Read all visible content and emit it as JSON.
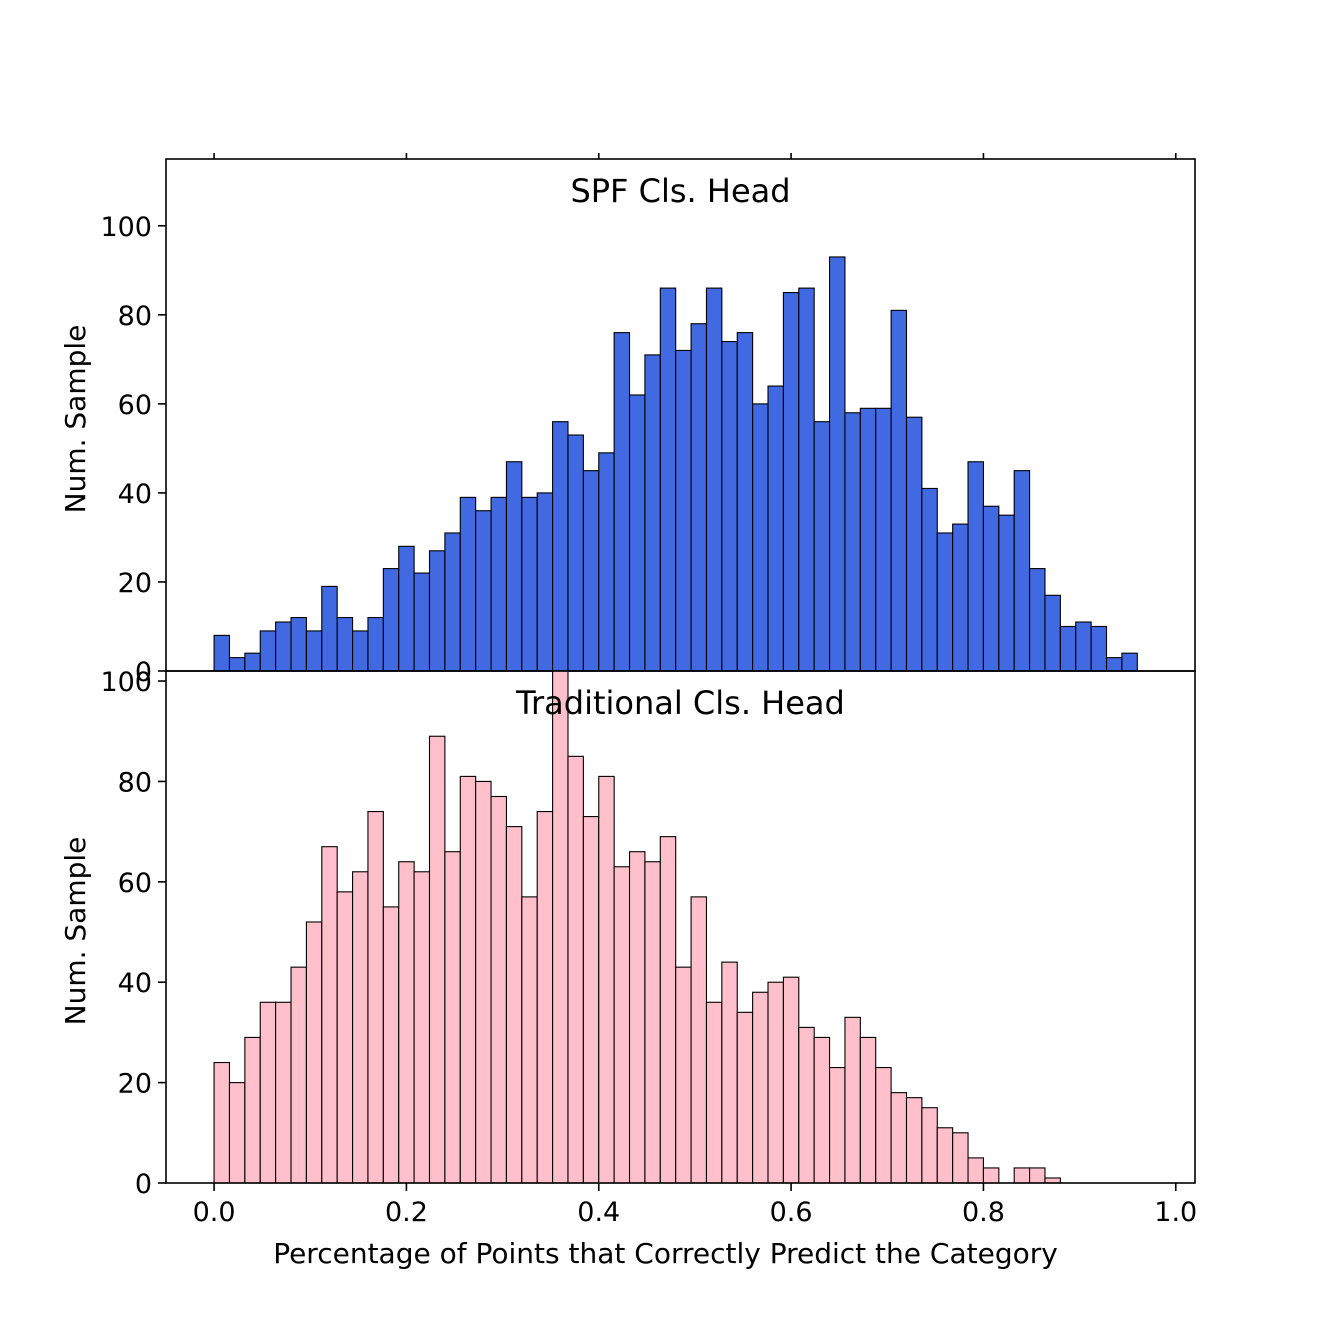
{
  "chart_data": [
    {
      "type": "bar",
      "title": "SPF Cls. Head",
      "xlabel": "",
      "ylabel": "Num. Sample",
      "xlim": [
        -0.05,
        1.02
      ],
      "ylim": [
        0,
        115
      ],
      "x_ticks": [
        0.0,
        0.2,
        0.4,
        0.6,
        0.8,
        1.0
      ],
      "x_tick_labels_visible": false,
      "y_ticks": [
        0,
        20,
        40,
        60,
        80,
        100
      ],
      "y_tick_labels": [
        "0",
        "20",
        "40",
        "60",
        "80",
        "100"
      ],
      "bin_start": 0.0,
      "bin_width": 0.016,
      "color": "#4169e1",
      "edgecolor": "#000000",
      "grid": false,
      "values": [
        8,
        3,
        4,
        9,
        11,
        12,
        9,
        19,
        12,
        9,
        12,
        23,
        28,
        22,
        27,
        31,
        39,
        36,
        39,
        47,
        39,
        40,
        56,
        53,
        45,
        49,
        76,
        62,
        71,
        86,
        72,
        78,
        86,
        74,
        76,
        60,
        64,
        85,
        86,
        56,
        93,
        58,
        59,
        59,
        81,
        57,
        41,
        31,
        33,
        47,
        37,
        35,
        45,
        23,
        17,
        10,
        11,
        10,
        3,
        4
      ]
    },
    {
      "type": "bar",
      "title": "Traditional Cls. Head",
      "xlabel": "Percentage of Points that Correctly Predict the Category",
      "ylabel": "Num. Sample",
      "xlim": [
        -0.05,
        1.02
      ],
      "ylim": [
        0,
        102
      ],
      "x_ticks": [
        0.0,
        0.2,
        0.4,
        0.6,
        0.8,
        1.0
      ],
      "x_tick_labels": [
        "0.0",
        "0.2",
        "0.4",
        "0.6",
        "0.8",
        "1.0"
      ],
      "y_ticks": [
        0,
        20,
        40,
        60,
        80,
        100
      ],
      "y_tick_labels": [
        "0",
        "20",
        "40",
        "60",
        "80",
        "100"
      ],
      "bin_start": 0.0,
      "bin_width": 0.016,
      "color": "#ffc0cb",
      "edgecolor": "#000000",
      "grid": false,
      "values": [
        24,
        20,
        29,
        36,
        36,
        43,
        52,
        67,
        58,
        62,
        74,
        55,
        64,
        62,
        89,
        66,
        81,
        80,
        77,
        71,
        57,
        74,
        102,
        85,
        73,
        81,
        63,
        66,
        64,
        69,
        43,
        57,
        36,
        44,
        34,
        38,
        40,
        41,
        31,
        29,
        23,
        33,
        29,
        23,
        18,
        17,
        15,
        11,
        10,
        5,
        3,
        0,
        3,
        3,
        1
      ]
    }
  ]
}
